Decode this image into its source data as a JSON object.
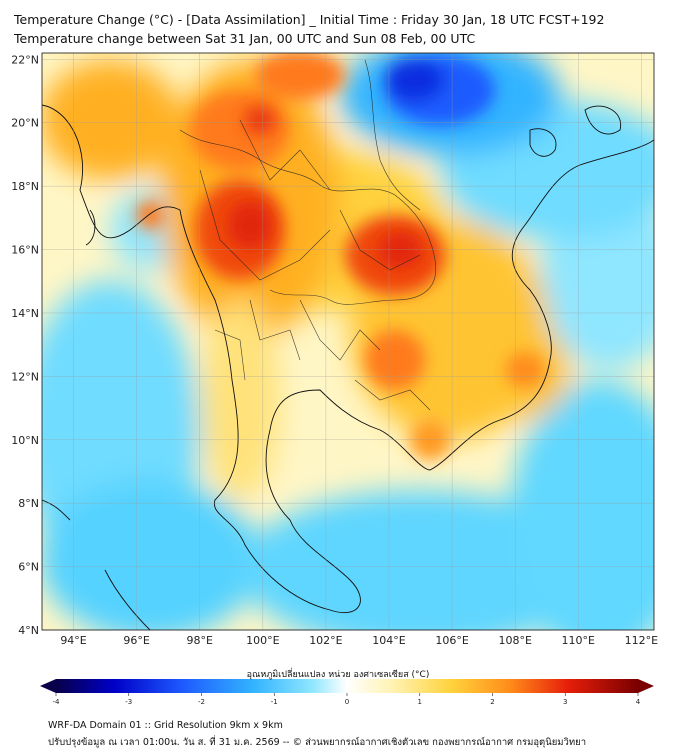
{
  "header": {
    "title_line1": "Temperature Change (°C) - [Data Assimilation] _ Initial Time : Friday 30 Jan, 18 UTC FCST+192",
    "title_line2": "Temperature change between Sat 31 Jan, 00 UTC and Sun 08 Feb, 00 UTC"
  },
  "map": {
    "lat_labels": [
      "22°N",
      "20°N",
      "18°N",
      "16°N",
      "14°N",
      "12°N",
      "10°N",
      "8°N",
      "6°N",
      "4°N"
    ],
    "lat_values": [
      22,
      20,
      18,
      16,
      14,
      12,
      10,
      8,
      6,
      4
    ],
    "lon_labels": [
      "94°E",
      "96°E",
      "98°E",
      "100°E",
      "102°E",
      "104°E",
      "106°E",
      "108°E",
      "110°E",
      "112°E"
    ],
    "lon_values": [
      94,
      96,
      98,
      100,
      102,
      104,
      106,
      108,
      110,
      112
    ],
    "lon_range": [
      93,
      112.4
    ],
    "lat_range": [
      4,
      22.2
    ],
    "gridlines": true
  },
  "colorbar": {
    "title": "อุณหภูมิเปลี่ยนแปลง หน่วย องศาเซลเซียส (°C)",
    "ticks": [
      "-4",
      "-3",
      "-2",
      "-1",
      "0",
      "1",
      "2",
      "3",
      "4"
    ],
    "range": [
      -4,
      4
    ],
    "extend": "both",
    "colors": [
      "#08004a",
      "#0000c8",
      "#1e5cff",
      "#33b4ff",
      "#8fe6ff",
      "#ffffff",
      "#fff2b0",
      "#ffd23c",
      "#ff8c1a",
      "#e61e0a",
      "#7a0000"
    ]
  },
  "footer": {
    "line1": "WRF-DA Domain 01 :: Grid Resolution 9km x 9km",
    "line2": "ปรับปรุงข้อมูล ณ เวลา 01:00น. วัน ส. ที่ 31 ม.ค. 2569 -- © ส่วนพยากรณ์อากาศเชิงตัวเลข กองพยากรณ์อากาศ กรมอุตุนิยมวิทยา"
  }
}
